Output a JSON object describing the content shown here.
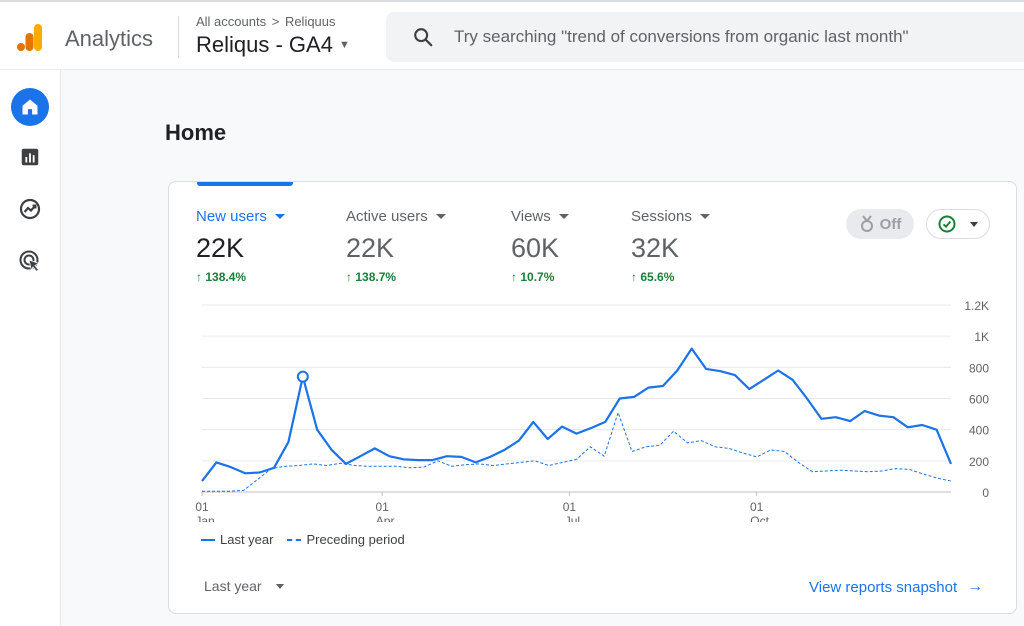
{
  "header": {
    "brand": "Analytics",
    "breadcrumb": {
      "root": "All accounts",
      "separator": ">",
      "current": "Reliquus"
    },
    "property": "Reliqus - GA4",
    "search_placeholder": "Try searching \"trend of conversions from organic last month\""
  },
  "nav": {
    "items": [
      {
        "icon": "home-icon",
        "active": true
      },
      {
        "icon": "reports-icon",
        "active": false
      },
      {
        "icon": "explore-icon",
        "active": false
      },
      {
        "icon": "advertising-icon",
        "active": false
      }
    ]
  },
  "page": {
    "title": "Home"
  },
  "card": {
    "metrics": [
      {
        "label": "New users",
        "value": "22K",
        "change": "138.4%"
      },
      {
        "label": "Active users",
        "value": "22K",
        "change": "138.7%"
      },
      {
        "label": "Views",
        "value": "60K",
        "change": "10.7%"
      },
      {
        "label": "Sessions",
        "value": "32K",
        "change": "65.6%"
      }
    ],
    "insights_toggle": "Off",
    "date_range": "Last year",
    "snapshot_link": "View reports snapshot",
    "colors": {
      "accent": "#1a73e8",
      "positive": "#188038"
    }
  },
  "chart_data": {
    "type": "line",
    "ylim": [
      0,
      1200
    ],
    "yticks": [
      "1.2K",
      "1K",
      "800",
      "600",
      "400",
      "200",
      "0"
    ],
    "xtick_labels": [
      {
        "day": "01",
        "month": "Jan"
      },
      {
        "day": "01",
        "month": "Apr"
      },
      {
        "day": "01",
        "month": "Jul"
      },
      {
        "day": "01",
        "month": "Oct"
      }
    ],
    "grid": true,
    "legend_position": "bottom-left",
    "series": [
      {
        "name": "Last year",
        "style": "solid",
        "values": [
          70,
          190,
          160,
          120,
          125,
          155,
          320,
          740,
          400,
          270,
          180,
          230,
          280,
          230,
          210,
          205,
          205,
          230,
          225,
          190,
          225,
          270,
          330,
          450,
          340,
          420,
          375,
          410,
          450,
          600,
          610,
          670,
          680,
          780,
          920,
          790,
          775,
          750,
          660,
          720,
          780,
          720,
          600,
          470,
          480,
          455,
          520,
          490,
          480,
          415,
          430,
          400,
          180
        ]
      },
      {
        "name": "Preceding period",
        "style": "dashed",
        "values": [
          5,
          5,
          5,
          10,
          80,
          150,
          165,
          170,
          180,
          170,
          185,
          170,
          165,
          165,
          165,
          155,
          160,
          200,
          165,
          175,
          180,
          170,
          180,
          190,
          200,
          170,
          190,
          210,
          290,
          230,
          510,
          260,
          290,
          300,
          390,
          315,
          330,
          290,
          280,
          250,
          225,
          270,
          260,
          190,
          130,
          135,
          140,
          135,
          130,
          135,
          150,
          145,
          115,
          90,
          70
        ]
      }
    ],
    "highlight_point": {
      "series": "Last year",
      "value": 740
    }
  }
}
